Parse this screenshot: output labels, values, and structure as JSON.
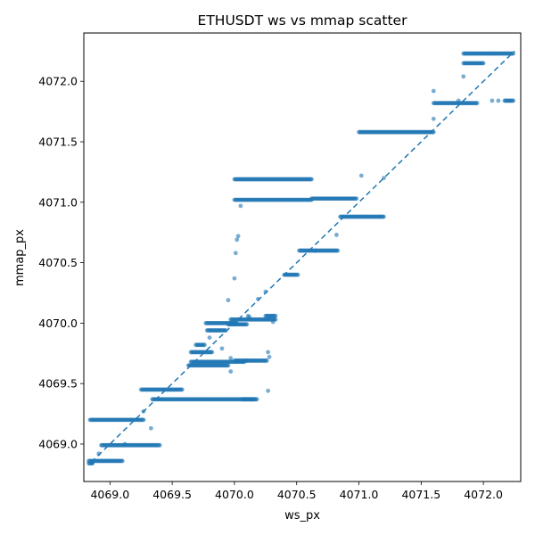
{
  "chart_data": {
    "type": "scatter",
    "title": "ETHUSDT ws vs mmap scatter",
    "xlabel": "ws_px",
    "ylabel": "mmap_px",
    "xlim": [
      4068.79,
      4072.3
    ],
    "ylim": [
      4068.69,
      4072.4
    ],
    "xticks": [
      4069.0,
      4069.5,
      4070.0,
      4070.5,
      4071.0,
      4071.5,
      4072.0
    ],
    "yticks": [
      4069.0,
      4069.5,
      4070.0,
      4070.5,
      4071.0,
      4071.5,
      4072.0
    ],
    "xtick_labels": [
      "4069.0",
      "4069.5",
      "4070.0",
      "4070.5",
      "4071.0",
      "4071.5",
      "4072.0"
    ],
    "ytick_labels": [
      "4069.0",
      "4069.5",
      "4070.0",
      "4070.5",
      "4071.0",
      "4071.5",
      "4072.0"
    ],
    "grid": false,
    "colors": {
      "points": "#1f77b4",
      "diagonal": "#1f77b4"
    },
    "reference_line": {
      "style": "dashed",
      "x": [
        4068.85,
        4072.25
      ],
      "y": [
        4068.85,
        4072.25
      ]
    },
    "series": [
      {
        "clusters": [
          {
            "x0": 4068.84,
            "x1": 4069.27,
            "y": 4069.2
          },
          {
            "x0": 4068.83,
            "x1": 4068.86,
            "y": 4068.84
          },
          {
            "x0": 4068.83,
            "x1": 4069.1,
            "y": 4068.86
          },
          {
            "x0": 4068.93,
            "x1": 4069.4,
            "y": 4068.99
          },
          {
            "x0": 4069.25,
            "x1": 4069.58,
            "y": 4069.45
          },
          {
            "x0": 4069.34,
            "x1": 4070.18,
            "y": 4069.37
          },
          {
            "x0": 4070.06,
            "x1": 4070.16,
            "y": 4069.37
          },
          {
            "x0": 4069.63,
            "x1": 4069.95,
            "y": 4069.65
          },
          {
            "x0": 4069.65,
            "x1": 4070.08,
            "y": 4069.68
          },
          {
            "x0": 4070.0,
            "x1": 4070.26,
            "y": 4069.69
          },
          {
            "x0": 4069.65,
            "x1": 4069.82,
            "y": 4069.76
          },
          {
            "x0": 4069.69,
            "x1": 4069.76,
            "y": 4069.82
          },
          {
            "x0": 4069.78,
            "x1": 4069.93,
            "y": 4069.94
          },
          {
            "x0": 4069.77,
            "x1": 4070.02,
            "y": 4070.0
          },
          {
            "x0": 4069.95,
            "x1": 4070.1,
            "y": 4069.99
          },
          {
            "x0": 4069.97,
            "x1": 4070.33,
            "y": 4070.03
          },
          {
            "x0": 4070.25,
            "x1": 4070.33,
            "y": 4070.06
          },
          {
            "x0": 4070.4,
            "x1": 4070.51,
            "y": 4070.4
          },
          {
            "x0": 4070.52,
            "x1": 4070.83,
            "y": 4070.6
          },
          {
            "x0": 4070.85,
            "x1": 4071.2,
            "y": 4070.88
          },
          {
            "x0": 4070.0,
            "x1": 4070.62,
            "y": 4071.02
          },
          {
            "x0": 4070.0,
            "x1": 4070.62,
            "y": 4071.19
          },
          {
            "x0": 4070.62,
            "x1": 4070.98,
            "y": 4071.03
          },
          {
            "x0": 4071.0,
            "x1": 4071.6,
            "y": 4071.58
          },
          {
            "x0": 4071.6,
            "x1": 4071.95,
            "y": 4071.82
          },
          {
            "x0": 4071.84,
            "x1": 4072.24,
            "y": 4072.23
          },
          {
            "x0": 4071.84,
            "x1": 4072.0,
            "y": 4072.15
          },
          {
            "x0": 4072.17,
            "x1": 4072.24,
            "y": 4071.84
          }
        ],
        "points": [
          {
            "x": 4068.86,
            "y": 4068.85
          },
          {
            "x": 4068.91,
            "y": 4068.92
          },
          {
            "x": 4069.12,
            "y": 4069.0
          },
          {
            "x": 4069.27,
            "y": 4069.27
          },
          {
            "x": 4069.33,
            "y": 4069.13
          },
          {
            "x": 4069.8,
            "y": 4069.88
          },
          {
            "x": 4069.9,
            "y": 4069.79
          },
          {
            "x": 4069.95,
            "y": 4070.19
          },
          {
            "x": 4069.97,
            "y": 4069.71
          },
          {
            "x": 4069.97,
            "y": 4069.6
          },
          {
            "x": 4070.0,
            "y": 4070.37
          },
          {
            "x": 4070.01,
            "y": 4070.58
          },
          {
            "x": 4070.02,
            "y": 4070.69
          },
          {
            "x": 4070.03,
            "y": 4070.72
          },
          {
            "x": 4070.05,
            "y": 4070.97
          },
          {
            "x": 4070.11,
            "y": 4070.06
          },
          {
            "x": 4070.1,
            "y": 4069.69
          },
          {
            "x": 4070.12,
            "y": 4070.05
          },
          {
            "x": 4070.19,
            "y": 4070.2
          },
          {
            "x": 4070.25,
            "y": 4070.26
          },
          {
            "x": 4070.27,
            "y": 4069.76
          },
          {
            "x": 4070.27,
            "y": 4069.44
          },
          {
            "x": 4070.28,
            "y": 4069.72
          },
          {
            "x": 4070.31,
            "y": 4070.01
          },
          {
            "x": 4070.65,
            "y": 4070.6
          },
          {
            "x": 4070.82,
            "y": 4070.73
          },
          {
            "x": 4071.02,
            "y": 4071.22
          },
          {
            "x": 4071.2,
            "y": 4071.2
          },
          {
            "x": 4071.6,
            "y": 4071.69
          },
          {
            "x": 4071.6,
            "y": 4071.92
          },
          {
            "x": 4071.8,
            "y": 4071.84
          },
          {
            "x": 4071.84,
            "y": 4072.04
          },
          {
            "x": 4072.07,
            "y": 4071.84
          },
          {
            "x": 4072.12,
            "y": 4071.84
          }
        ]
      }
    ]
  }
}
